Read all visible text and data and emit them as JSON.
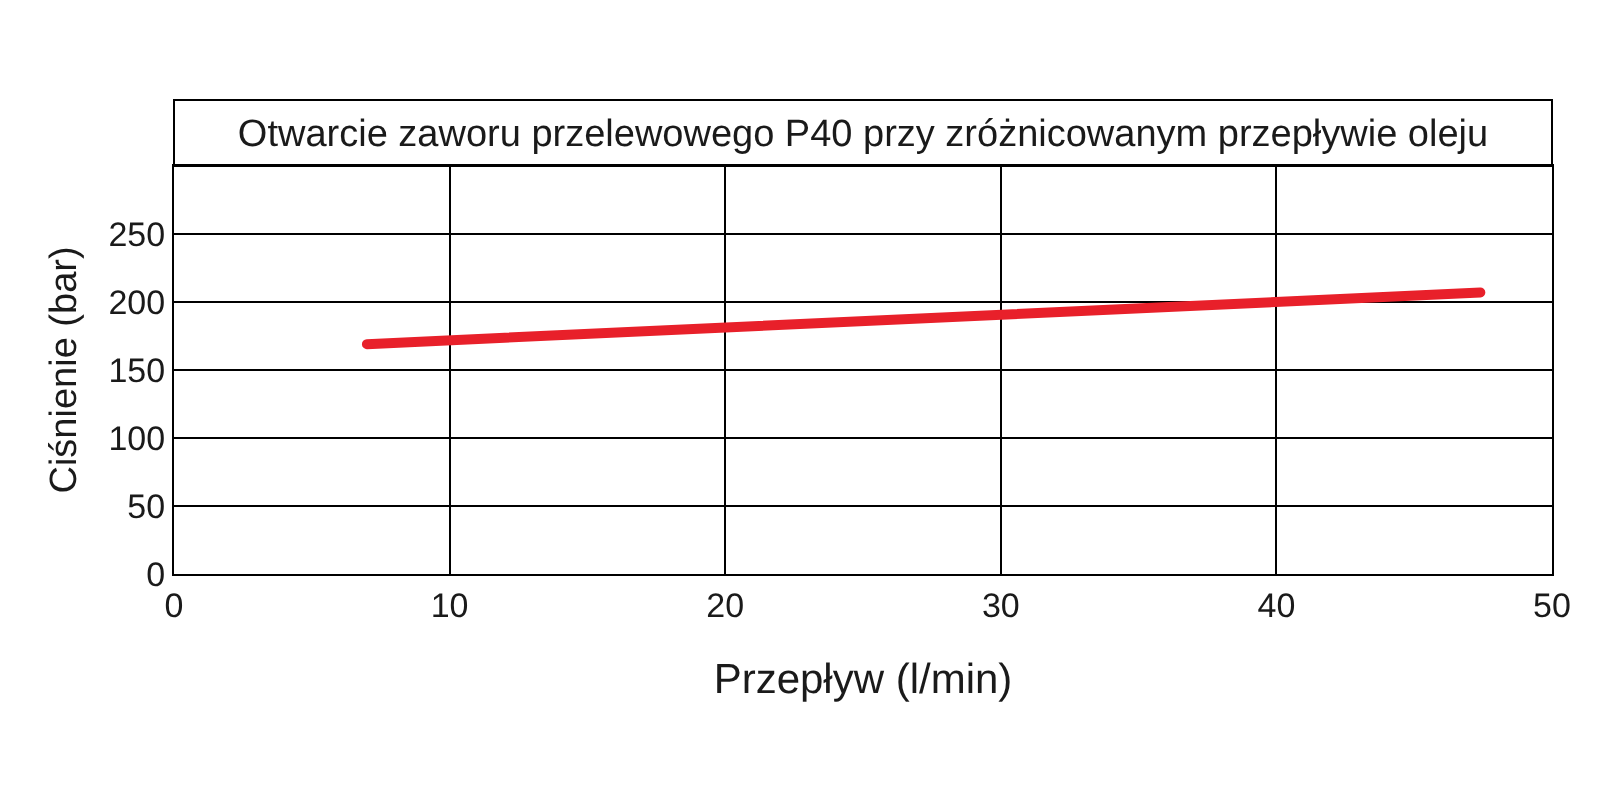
{
  "chart_data": {
    "type": "line",
    "title": "Otwarcie zaworu przelewowego P40 przy zróżnicowanym przepływie oleju",
    "xlabel": "Przepływ (l/min)",
    "ylabel": "Ciśnienie (bar)",
    "x": [
      7,
      47.4
    ],
    "series": [
      {
        "color": "#e8202a",
        "values": [
          169,
          207
        ]
      }
    ],
    "xlim": [
      0,
      50
    ],
    "ylim": [
      0,
      300
    ],
    "xticks": [
      0,
      10,
      20,
      30,
      40,
      50
    ],
    "yticks": [
      0,
      50,
      100,
      150,
      200,
      250
    ],
    "grid": true
  }
}
